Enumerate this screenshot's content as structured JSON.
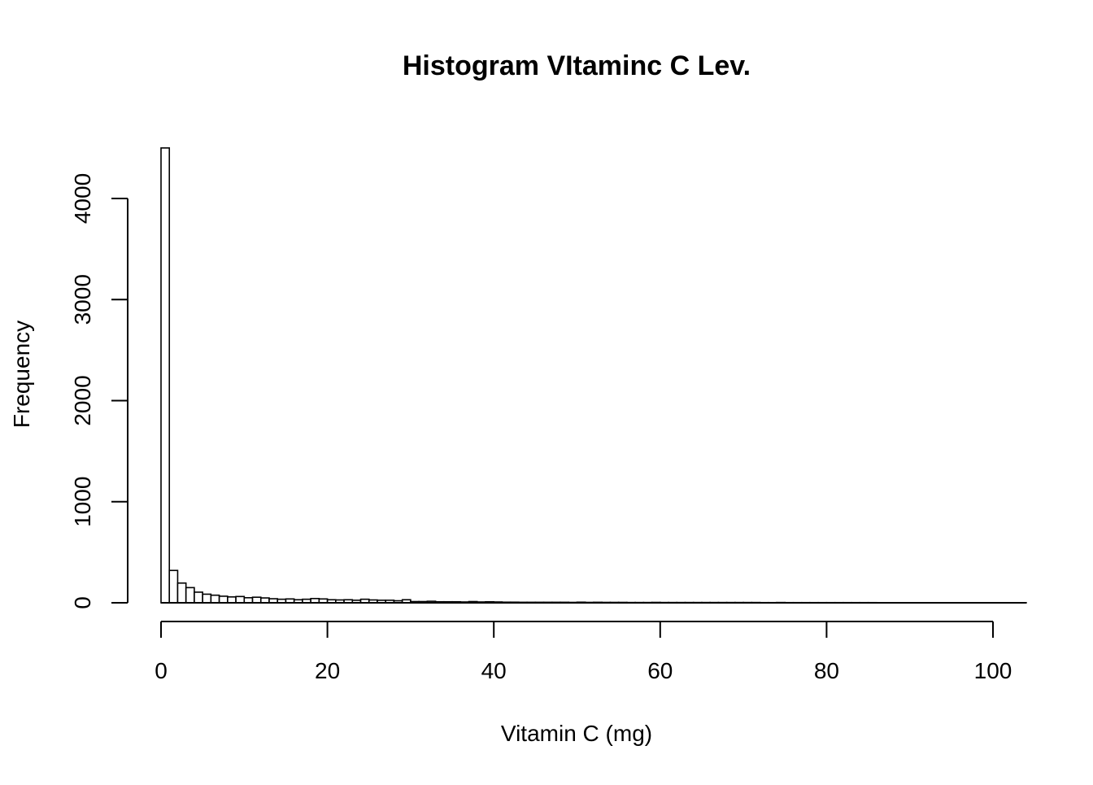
{
  "chart_data": {
    "type": "bar",
    "title": "Histogram VItaminc C Lev.",
    "xlabel": "Vitamin C (mg)",
    "ylabel": "Frequency",
    "xlim": [
      0,
      104
    ],
    "ylim": [
      0,
      4500
    ],
    "x_ticks": [
      "0",
      "20",
      "40",
      "60",
      "80",
      "100"
    ],
    "y_ticks": [
      "0",
      "1000",
      "2000",
      "3000",
      "4000"
    ],
    "bin_width": 1,
    "bin_starts": [
      0,
      1,
      2,
      3,
      4,
      5,
      6,
      7,
      8,
      9,
      10,
      11,
      12,
      13,
      14,
      15,
      16,
      17,
      18,
      19,
      20,
      21,
      22,
      23,
      24,
      25,
      26,
      27,
      28,
      29,
      30,
      31,
      32,
      33,
      34,
      35,
      36,
      37,
      38,
      39,
      40,
      41,
      42,
      43,
      44,
      45,
      46,
      47,
      48,
      49,
      50,
      51,
      52,
      53,
      54,
      55,
      56,
      57,
      58,
      59,
      60,
      61,
      62,
      63,
      64,
      65,
      66,
      67,
      68,
      69,
      70,
      71,
      72,
      73,
      74,
      75,
      76,
      77,
      78,
      79,
      80,
      81,
      82,
      83,
      84,
      85,
      86,
      87,
      88,
      89,
      90,
      91,
      92,
      93,
      94,
      95,
      96,
      97,
      98,
      99,
      100,
      101,
      102,
      103
    ],
    "frequencies": [
      4500,
      320,
      195,
      150,
      105,
      85,
      75,
      65,
      58,
      62,
      50,
      55,
      48,
      40,
      35,
      38,
      30,
      35,
      42,
      38,
      30,
      28,
      30,
      25,
      35,
      28,
      25,
      25,
      20,
      30,
      12,
      12,
      15,
      10,
      10,
      10,
      8,
      12,
      8,
      10,
      8,
      6,
      6,
      5,
      5,
      5,
      5,
      5,
      5,
      4,
      6,
      4,
      5,
      4,
      4,
      4,
      3,
      3,
      3,
      4,
      3,
      3,
      3,
      3,
      3,
      3,
      3,
      3,
      3,
      3,
      3,
      3,
      2,
      2,
      3,
      2,
      2,
      2,
      2,
      2,
      2,
      2,
      2,
      2,
      2,
      2,
      1,
      1,
      1,
      1,
      1,
      1,
      1,
      1,
      1,
      1,
      1,
      1,
      1,
      1,
      1,
      1,
      1,
      1
    ]
  }
}
